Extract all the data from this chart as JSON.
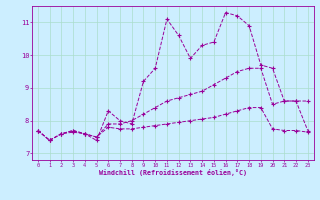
{
  "xlabel": "Windchill (Refroidissement éolien,°C)",
  "bg_color": "#cceeff",
  "line_color": "#990099",
  "grid_color": "#aaddcc",
  "xlim": [
    -0.5,
    23.5
  ],
  "ylim": [
    6.8,
    11.5
  ],
  "xticks": [
    0,
    1,
    2,
    3,
    4,
    5,
    6,
    7,
    8,
    9,
    10,
    11,
    12,
    13,
    14,
    15,
    16,
    17,
    18,
    19,
    20,
    21,
    22,
    23
  ],
  "yticks": [
    7,
    8,
    9,
    10,
    11
  ],
  "series1_y": [
    7.7,
    7.4,
    7.6,
    7.7,
    7.6,
    7.4,
    8.3,
    8.0,
    7.9,
    9.2,
    9.6,
    11.1,
    10.6,
    9.9,
    10.3,
    10.4,
    11.3,
    11.2,
    10.9,
    9.7,
    9.6,
    8.6,
    8.6,
    8.6
  ],
  "series2_y": [
    7.7,
    7.4,
    7.6,
    7.7,
    7.6,
    7.5,
    7.9,
    7.9,
    8.0,
    8.2,
    8.4,
    8.6,
    8.7,
    8.8,
    8.9,
    9.1,
    9.3,
    9.5,
    9.6,
    9.6,
    8.5,
    8.6,
    8.6,
    7.7
  ],
  "series3_y": [
    7.7,
    7.4,
    7.6,
    7.65,
    7.6,
    7.5,
    7.8,
    7.75,
    7.75,
    7.8,
    7.85,
    7.9,
    7.95,
    8.0,
    8.05,
    8.1,
    8.2,
    8.3,
    8.4,
    8.4,
    7.75,
    7.7,
    7.7,
    7.65
  ]
}
